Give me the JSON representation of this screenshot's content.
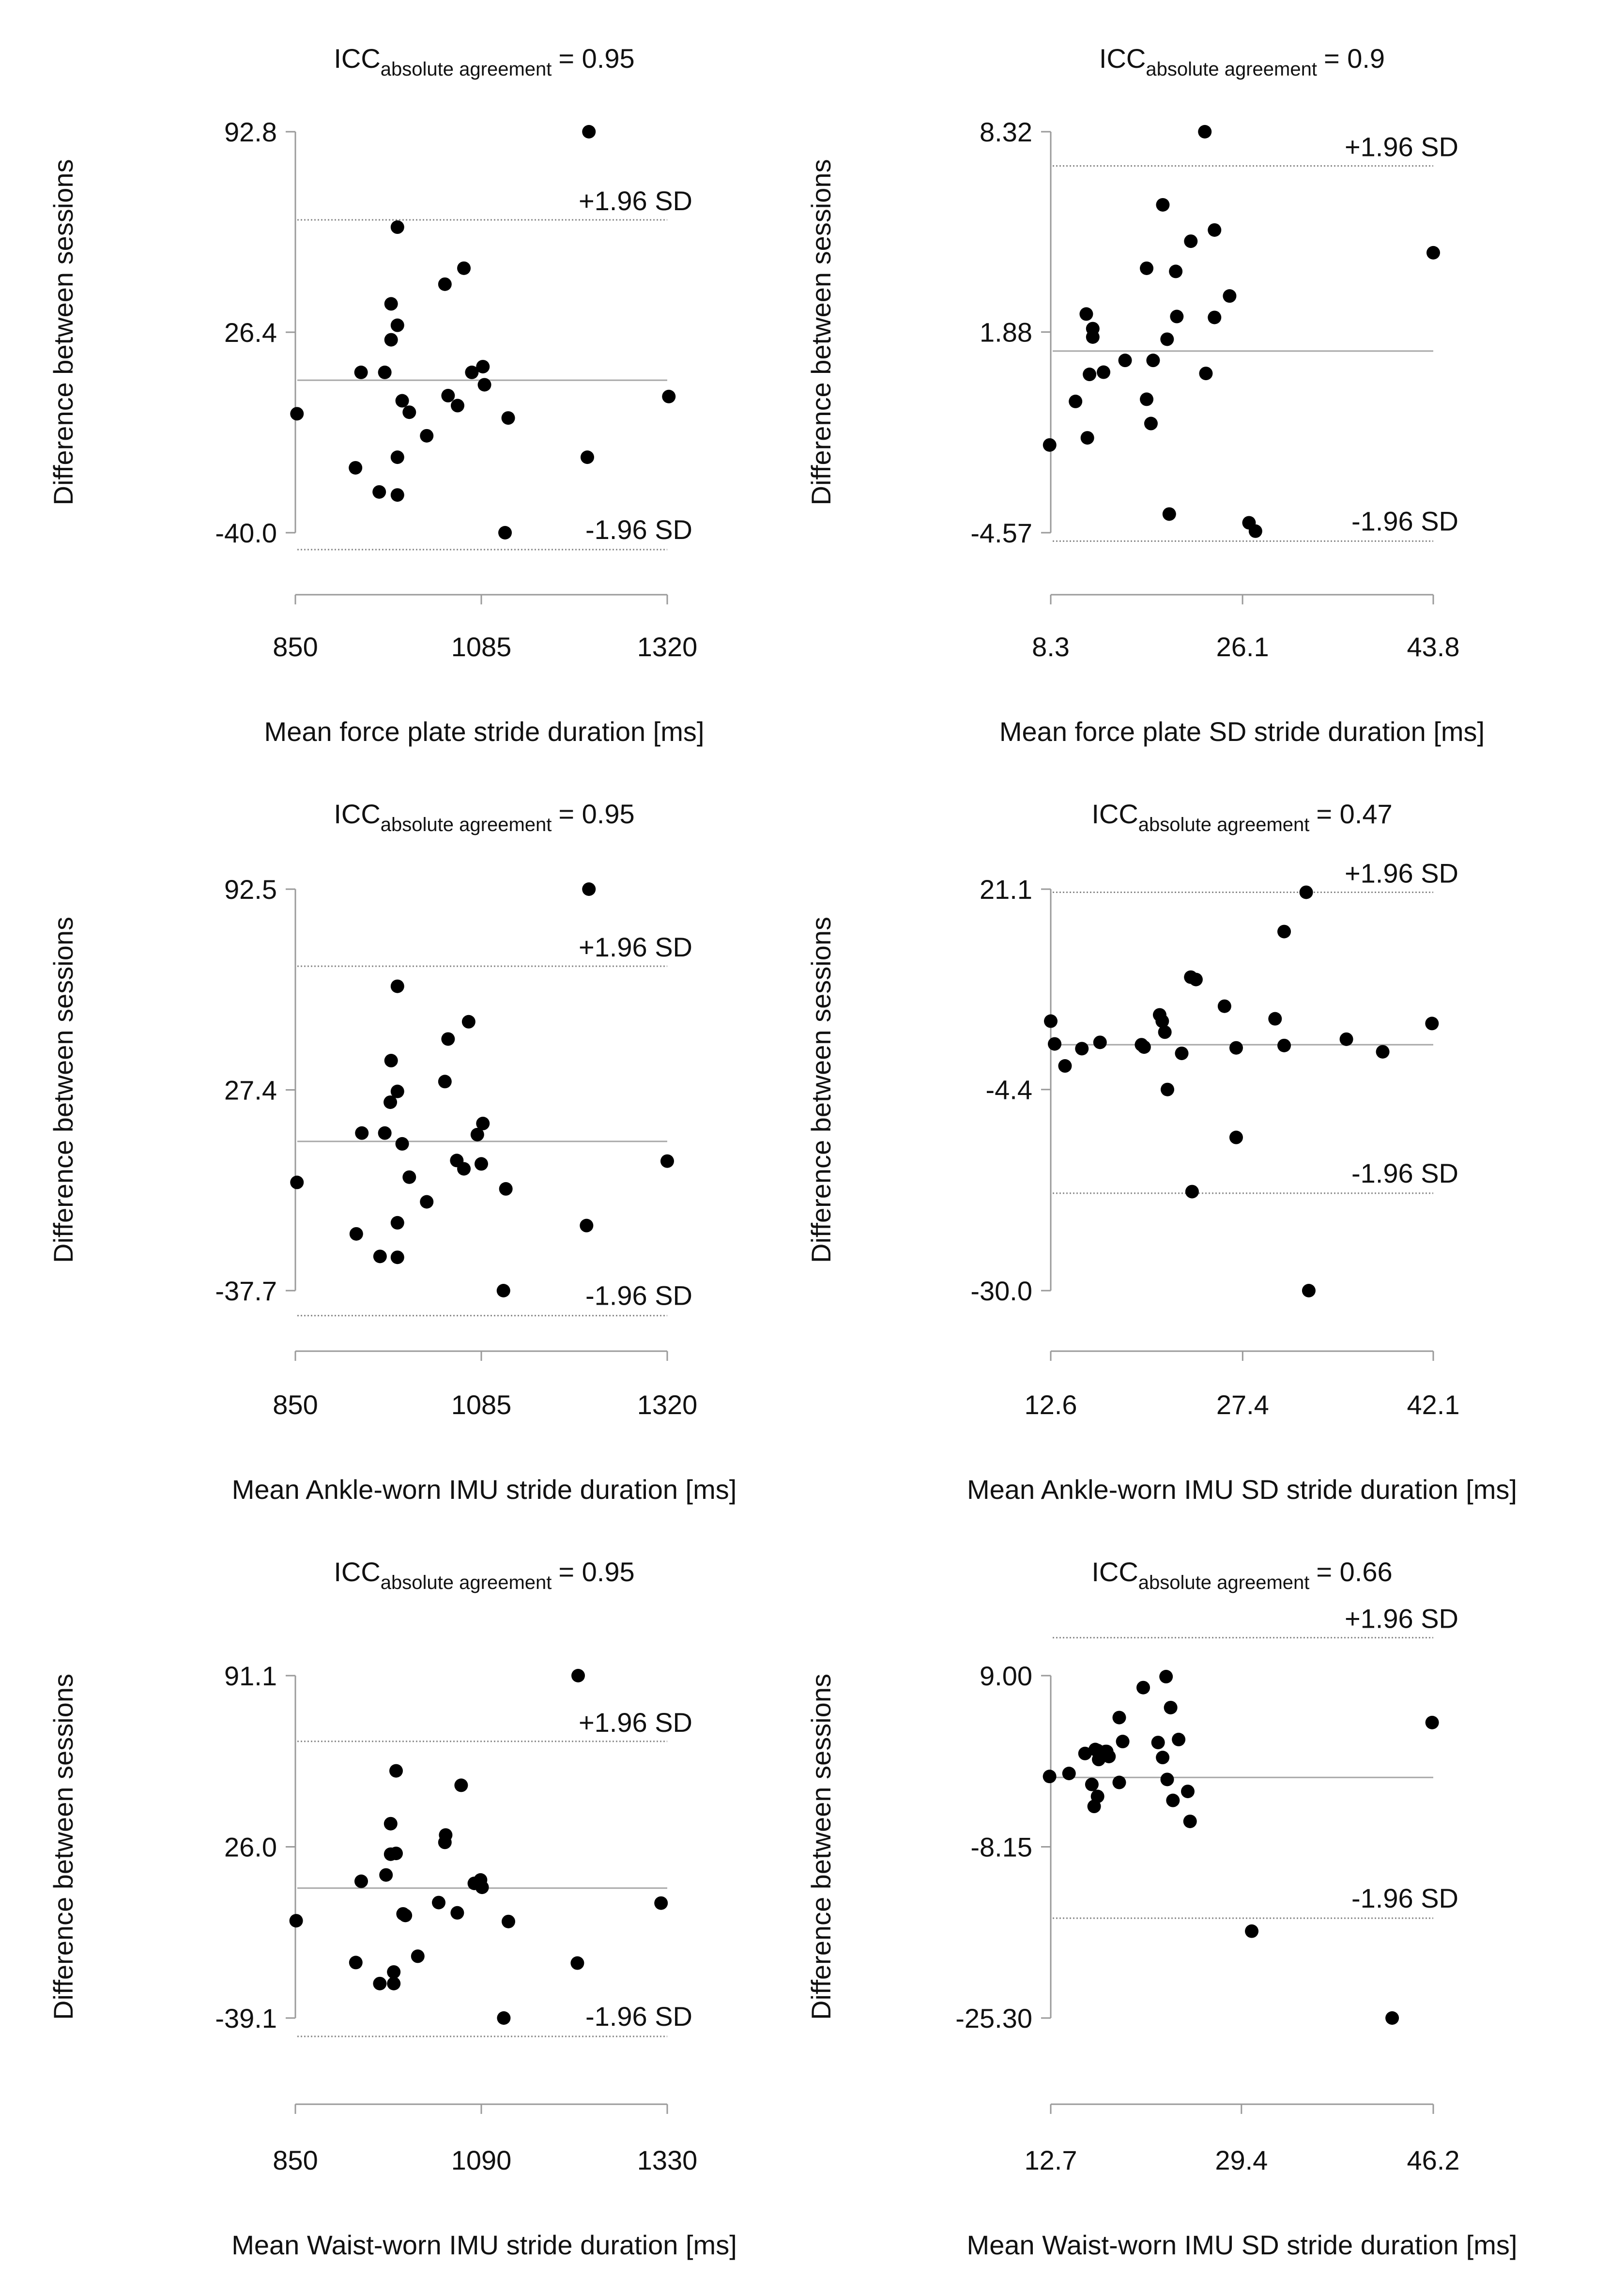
{
  "figure": {
    "icc_prefix": "ICC",
    "icc_subscript": "absolute agreement",
    "y_label": "Difference between sessions",
    "upper_loa_label": "+1.96 SD",
    "lower_loa_label": "-1.96 SD"
  },
  "chart_data": [
    {
      "id": "force-plate-mean",
      "type": "scatter",
      "subtype": "bland-altman",
      "title": "ICC absolute agreement = 0.95",
      "icc_value": "= 0.95",
      "xlabel": "Mean force plate stride duration [ms]",
      "ylabel": "Difference between sessions",
      "x_ticks": [
        "850",
        "1085",
        "1320"
      ],
      "y_ticks": [
        "92.8",
        "26.4",
        "-40.0"
      ],
      "xlim": [
        850,
        1320
      ],
      "ylim": [
        -40.0,
        92.8
      ],
      "mean_difference": 10.5,
      "upper_loa": 63.6,
      "lower_loa": -45.6,
      "points": [
        [
          852,
          -0.6
        ],
        [
          926,
          -18.5
        ],
        [
          933,
          13.1
        ],
        [
          956,
          -26.5
        ],
        [
          963,
          13.1
        ],
        [
          971,
          23.9
        ],
        [
          971,
          35.8
        ],
        [
          979,
          -15.0
        ],
        [
          979,
          -27.5
        ],
        [
          979,
          28.7
        ],
        [
          979,
          61.2
        ],
        [
          985,
          3.7
        ],
        [
          994,
          -0.1
        ],
        [
          1016,
          -7.9
        ],
        [
          1039,
          42.3
        ],
        [
          1043,
          5.4
        ],
        [
          1055,
          2.1
        ],
        [
          1063,
          47.6
        ],
        [
          1073,
          13.1
        ],
        [
          1087,
          15.0
        ],
        [
          1089,
          9.0
        ],
        [
          1115,
          -40.0
        ],
        [
          1119,
          -2.0
        ],
        [
          1219,
          -15.0
        ],
        [
          1221,
          92.8
        ],
        [
          1322,
          5.1
        ]
      ]
    },
    {
      "id": "force-plate-sd",
      "type": "scatter",
      "subtype": "bland-altman",
      "title": "ICC absolute agreement = 0.9",
      "icc_value": "= 0.9",
      "xlabel": "Mean force plate SD stride duration [ms]",
      "ylabel": "Difference between sessions",
      "x_ticks": [
        "8.3",
        "26.1",
        "43.8"
      ],
      "y_ticks": [
        "8.32",
        "1.88",
        "-4.57"
      ],
      "xlim": [
        8.3,
        43.8
      ],
      "ylim": [
        -4.57,
        8.32
      ],
      "mean_difference": 1.27,
      "upper_loa": 7.22,
      "lower_loa": -4.84,
      "points": [
        [
          8.2,
          -1.75
        ],
        [
          10.6,
          -0.35
        ],
        [
          11.6,
          2.46
        ],
        [
          11.7,
          -1.52
        ],
        [
          12.2,
          1.99
        ],
        [
          12.2,
          1.72
        ],
        [
          11.9,
          0.52
        ],
        [
          13.2,
          0.59
        ],
        [
          15.2,
          0.97
        ],
        [
          17.2,
          -0.28
        ],
        [
          17.2,
          3.93
        ],
        [
          17.6,
          -1.06
        ],
        [
          17.8,
          0.97
        ],
        [
          18.7,
          5.97
        ],
        [
          19.1,
          1.65
        ],
        [
          19.3,
          -3.97
        ],
        [
          19.9,
          3.83
        ],
        [
          20.0,
          2.38
        ],
        [
          21.3,
          4.8
        ],
        [
          22.6,
          8.32
        ],
        [
          22.7,
          0.55
        ],
        [
          23.5,
          2.35
        ],
        [
          23.5,
          5.16
        ],
        [
          24.9,
          3.04
        ],
        [
          26.7,
          -4.25
        ],
        [
          27.3,
          -4.52
        ],
        [
          43.8,
          4.43
        ]
      ]
    },
    {
      "id": "ankle-imu-mean",
      "type": "scatter",
      "subtype": "bland-altman",
      "title": "ICC absolute agreement = 0.95",
      "icc_value": "= 0.95",
      "xlabel": "Mean Ankle-worn IMU stride duration [ms]",
      "ylabel": "Difference between sessions",
      "x_ticks": [
        "850",
        "1085",
        "1320"
      ],
      "y_ticks": [
        "92.5",
        "27.4",
        "-37.7"
      ],
      "xlim": [
        850,
        1320
      ],
      "ylim": [
        -37.7,
        92.5
      ],
      "mean_difference": 10.7,
      "upper_loa": 67.5,
      "lower_loa": -45.8,
      "points": [
        [
          852,
          -2.6
        ],
        [
          927,
          -19.3
        ],
        [
          934,
          13.4
        ],
        [
          957,
          -26.6
        ],
        [
          963,
          13.4
        ],
        [
          970,
          23.4
        ],
        [
          971,
          36.9
        ],
        [
          979,
          -26.9
        ],
        [
          979,
          -15.7
        ],
        [
          979,
          26.9
        ],
        [
          979,
          61.0
        ],
        [
          985,
          9.9
        ],
        [
          994,
          -0.9
        ],
        [
          1016,
          -8.9
        ],
        [
          1039,
          30.1
        ],
        [
          1043,
          43.9
        ],
        [
          1054,
          4.5
        ],
        [
          1063,
          1.8
        ],
        [
          1069,
          49.5
        ],
        [
          1080,
          12.9
        ],
        [
          1085,
          3.4
        ],
        [
          1087,
          16.5
        ],
        [
          1113,
          -37.7
        ],
        [
          1116,
          -4.7
        ],
        [
          1218,
          -16.6
        ],
        [
          1221,
          92.5
        ],
        [
          1320,
          4.3
        ]
      ]
    },
    {
      "id": "ankle-imu-sd",
      "type": "scatter",
      "subtype": "bland-altman",
      "title": "ICC absolute agreement = 0.47",
      "icc_value": "= 0.47",
      "xlabel": "Mean Ankle-worn IMU SD stride duration [ms]",
      "ylabel": "Difference between sessions",
      "x_ticks": [
        "12.6",
        "27.4",
        "42.1"
      ],
      "y_ticks": [
        "21.1",
        "-4.4",
        "-30.0"
      ],
      "xlim": [
        12.6,
        42.1
      ],
      "ylim": [
        -30.0,
        21.1
      ],
      "mean_difference": 1.3,
      "upper_loa": 20.7,
      "lower_loa": -17.6,
      "points": [
        [
          12.6,
          4.3
        ],
        [
          12.9,
          1.4
        ],
        [
          13.7,
          -1.4
        ],
        [
          15.0,
          0.8
        ],
        [
          16.4,
          1.6
        ],
        [
          19.6,
          1.3
        ],
        [
          19.8,
          1.0
        ],
        [
          21.0,
          5.1
        ],
        [
          21.2,
          4.3
        ],
        [
          21.4,
          2.9
        ],
        [
          21.6,
          -4.4
        ],
        [
          22.7,
          0.2
        ],
        [
          23.4,
          9.9
        ],
        [
          23.5,
          -17.4
        ],
        [
          23.8,
          9.6
        ],
        [
          26.0,
          6.2
        ],
        [
          26.9,
          -10.5
        ],
        [
          26.9,
          0.9
        ],
        [
          29.9,
          4.6
        ],
        [
          30.6,
          1.2
        ],
        [
          30.6,
          15.7
        ],
        [
          32.3,
          20.7
        ],
        [
          32.5,
          -30.0
        ],
        [
          35.4,
          2.0
        ],
        [
          38.2,
          0.4
        ],
        [
          42.0,
          4.0
        ]
      ]
    },
    {
      "id": "waist-imu-mean",
      "type": "scatter",
      "subtype": "bland-altman",
      "title": "ICC absolute agreement = 0.95",
      "icc_value": "= 0.95",
      "xlabel": "Mean Waist-worn IMU stride duration [ms]",
      "ylabel": "Difference between sessions",
      "x_ticks": [
        "850",
        "1090",
        "1330"
      ],
      "y_ticks": [
        "91.1",
        "26.0",
        "-39.1"
      ],
      "xlim": [
        850,
        1330
      ],
      "ylim": [
        -39.1,
        91.1
      ],
      "mean_difference": 10.3,
      "upper_loa": 66.1,
      "lower_loa": -46.1,
      "points": [
        [
          851,
          -2.1
        ],
        [
          928,
          -18.0
        ],
        [
          935,
          12.9
        ],
        [
          959,
          -26.0
        ],
        [
          967,
          15.3
        ],
        [
          973,
          23.2
        ],
        [
          973,
          34.8
        ],
        [
          977,
          -21.6
        ],
        [
          977,
          -26.0
        ],
        [
          980,
          23.5
        ],
        [
          980,
          54.9
        ],
        [
          989,
          0.5
        ],
        [
          992,
          -0.1
        ],
        [
          1008,
          -15.6
        ],
        [
          1035,
          4.8
        ],
        [
          1043,
          27.7
        ],
        [
          1044,
          30.5
        ],
        [
          1059,
          0.9
        ],
        [
          1064,
          49.4
        ],
        [
          1081,
          12.1
        ],
        [
          1089,
          13.4
        ],
        [
          1091,
          10.6
        ],
        [
          1119,
          -39.1
        ],
        [
          1125,
          -2.4
        ],
        [
          1214,
          -18.2
        ],
        [
          1215,
          91.1
        ],
        [
          1322,
          4.6
        ]
      ]
    },
    {
      "id": "waist-imu-sd",
      "type": "scatter",
      "subtype": "bland-altman",
      "title": "ICC absolute agreement = 0.66",
      "icc_value": "= 0.66",
      "xlabel": "Mean Waist-worn IMU SD stride duration [ms]",
      "ylabel": "Difference between sessions",
      "x_ticks": [
        "12.7",
        "29.4",
        "46.2"
      ],
      "y_ticks": [
        "9.00",
        "-8.15",
        "-25.30"
      ],
      "xlim": [
        12.7,
        46.2
      ],
      "ylim": [
        -25.3,
        9.0
      ],
      "mean_difference": -1.2,
      "upper_loa": 12.8,
      "lower_loa": -15.3,
      "points": [
        [
          12.6,
          -1.1
        ],
        [
          14.3,
          -0.8
        ],
        [
          15.7,
          1.2
        ],
        [
          16.3,
          -1.9
        ],
        [
          16.5,
          -4.1
        ],
        [
          16.6,
          1.6
        ],
        [
          16.8,
          -3.1
        ],
        [
          16.8,
          1.5
        ],
        [
          16.9,
          0.6
        ],
        [
          17.5,
          1.4
        ],
        [
          17.6,
          1.4
        ],
        [
          17.8,
          0.9
        ],
        [
          18.7,
          -1.7
        ],
        [
          18.7,
          4.8
        ],
        [
          19.0,
          2.4
        ],
        [
          20.8,
          7.8
        ],
        [
          22.1,
          2.3
        ],
        [
          22.5,
          0.8
        ],
        [
          22.8,
          8.9
        ],
        [
          22.9,
          -1.4
        ],
        [
          23.2,
          5.8
        ],
        [
          23.4,
          -3.5
        ],
        [
          23.9,
          2.6
        ],
        [
          24.7,
          -2.6
        ],
        [
          24.9,
          -5.6
        ],
        [
          30.3,
          -16.6
        ],
        [
          42.6,
          -25.3
        ],
        [
          46.1,
          4.3
        ]
      ]
    }
  ]
}
